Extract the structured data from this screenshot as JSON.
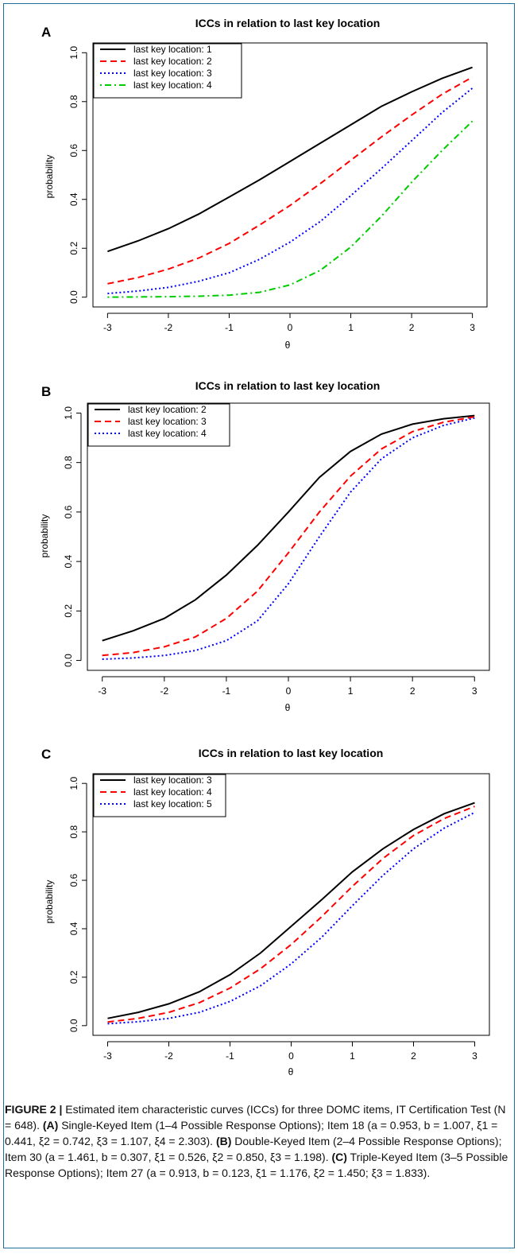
{
  "panels": [
    {
      "letter": "A",
      "chart_data": {
        "type": "line",
        "title": "ICCs in relation to last key location",
        "xlabel": "θ",
        "ylabel": "probability",
        "xlim": [
          -3,
          3
        ],
        "ylim": [
          0,
          1
        ],
        "x_ticks": [
          "-3",
          "-2",
          "-1",
          "0",
          "1",
          "2",
          "3"
        ],
        "y_ticks": [
          "0.0",
          "0.2",
          "0.4",
          "0.6",
          "0.8",
          "1.0"
        ],
        "legend_position": "top-left",
        "grid": false,
        "x": [
          -3,
          -2.5,
          -2,
          -1.5,
          -1,
          -0.5,
          0,
          0.5,
          1,
          1.5,
          2,
          2.5,
          3
        ],
        "series": [
          {
            "name": "last key location: 1",
            "color": "#000000",
            "dash": "solid",
            "values": [
              0.187,
              0.23,
              0.28,
              0.34,
              0.41,
              0.48,
              0.555,
              0.63,
              0.705,
              0.78,
              0.84,
              0.895,
              0.94
            ]
          },
          {
            "name": "last key location: 2",
            "color": "#ff0000",
            "dash": "dashed",
            "values": [
              0.055,
              0.08,
              0.115,
              0.16,
              0.22,
              0.295,
              0.375,
              0.465,
              0.56,
              0.655,
              0.745,
              0.83,
              0.9
            ]
          },
          {
            "name": "last key location: 3",
            "color": "#0000ff",
            "dash": "dotted",
            "values": [
              0.015,
              0.025,
              0.04,
              0.065,
              0.1,
              0.155,
              0.225,
              0.31,
              0.415,
              0.525,
              0.64,
              0.755,
              0.855
            ]
          },
          {
            "name": "last key location: 4",
            "color": "#00cc00",
            "dash": "dotdash",
            "values": [
              0.0,
              0.001,
              0.002,
              0.004,
              0.008,
              0.02,
              0.05,
              0.11,
              0.205,
              0.33,
              0.47,
              0.6,
              0.72
            ]
          }
        ]
      }
    },
    {
      "letter": "B",
      "chart_data": {
        "type": "line",
        "title": "ICCs in relation to last key location",
        "xlabel": "θ",
        "ylabel": "probability",
        "xlim": [
          -3,
          3
        ],
        "ylim": [
          0,
          1
        ],
        "x_ticks": [
          "-3",
          "-2",
          "-1",
          "0",
          "1",
          "2",
          "3"
        ],
        "y_ticks": [
          "0.0",
          "0.2",
          "0.4",
          "0.6",
          "0.8",
          "1.0"
        ],
        "legend_position": "top-left",
        "grid": false,
        "x": [
          -3,
          -2.5,
          -2,
          -1.5,
          -1,
          -0.5,
          0,
          0.5,
          1,
          1.5,
          2,
          2.5,
          3
        ],
        "series": [
          {
            "name": "last key location: 2",
            "color": "#000000",
            "dash": "solid",
            "values": [
              0.08,
              0.12,
              0.17,
              0.245,
              0.345,
              0.465,
              0.6,
              0.74,
              0.845,
              0.915,
              0.955,
              0.977,
              0.99
            ]
          },
          {
            "name": "last key location: 3",
            "color": "#ff0000",
            "dash": "dashed",
            "values": [
              0.02,
              0.032,
              0.055,
              0.095,
              0.17,
              0.28,
              0.435,
              0.6,
              0.745,
              0.855,
              0.925,
              0.963,
              0.985
            ]
          },
          {
            "name": "last key location: 4",
            "color": "#0000ff",
            "dash": "dotted",
            "values": [
              0.005,
              0.01,
              0.02,
              0.04,
              0.08,
              0.16,
              0.31,
              0.5,
              0.68,
              0.815,
              0.9,
              0.95,
              0.98
            ]
          }
        ]
      }
    },
    {
      "letter": "C",
      "chart_data": {
        "type": "line",
        "title": "ICCs in relation to last key location",
        "xlabel": "θ",
        "ylabel": "probability",
        "xlim": [
          -3,
          3
        ],
        "ylim": [
          0,
          1
        ],
        "x_ticks": [
          "-3",
          "-2",
          "-1",
          "0",
          "1",
          "2",
          "3"
        ],
        "y_ticks": [
          "0.0",
          "0.2",
          "0.4",
          "0.6",
          "0.8",
          "1.0"
        ],
        "legend_position": "top-left",
        "grid": false,
        "x": [
          -3,
          -2.5,
          -2,
          -1.5,
          -1,
          -0.5,
          0,
          0.5,
          1,
          1.5,
          2,
          2.5,
          3
        ],
        "series": [
          {
            "name": "last key location: 3",
            "color": "#000000",
            "dash": "solid",
            "values": [
              0.03,
              0.055,
              0.09,
              0.14,
              0.21,
              0.3,
              0.41,
              0.52,
              0.635,
              0.73,
              0.81,
              0.875,
              0.92
            ]
          },
          {
            "name": "last key location: 4",
            "color": "#ff0000",
            "dash": "dashed",
            "values": [
              0.015,
              0.03,
              0.055,
              0.095,
              0.155,
              0.235,
              0.335,
              0.45,
              0.575,
              0.69,
              0.785,
              0.855,
              0.905
            ]
          },
          {
            "name": "last key location: 5",
            "color": "#0000ff",
            "dash": "dotted",
            "values": [
              0.008,
              0.016,
              0.03,
              0.055,
              0.1,
              0.165,
              0.255,
              0.365,
              0.495,
              0.62,
              0.73,
              0.815,
              0.88
            ]
          }
        ]
      }
    }
  ],
  "caption": {
    "lead": "FIGURE 2 |",
    "intro": " Estimated item characteristic curves (ICCs) for three DOMC items, IT Certification Test (N = 648). ",
    "a_label": "(A)",
    "a_text": " Single-Keyed Item (1–4 Possible Response Options); Item 18 (a = 0.953, b = 1.007, ξ1 = 0.441, ξ2 = 0.742, ξ3 = 1.107, ξ4 = 2.303). ",
    "b_label": "(B)",
    "b_text": " Double-Keyed Item (2–4 Possible Response Options); Item 30 (a = 1.461, b = 0.307, ξ1 = 0.526, ξ2 = 0.850, ξ3 = 1.198). ",
    "c_label": "(C)",
    "c_text": " Triple-Keyed Item (3–5 Possible Response Options); Item 27 (a = 0.913, b = 0.123, ξ1 = 1.176, ξ2 = 1.450; ξ3 = 1.833)."
  }
}
